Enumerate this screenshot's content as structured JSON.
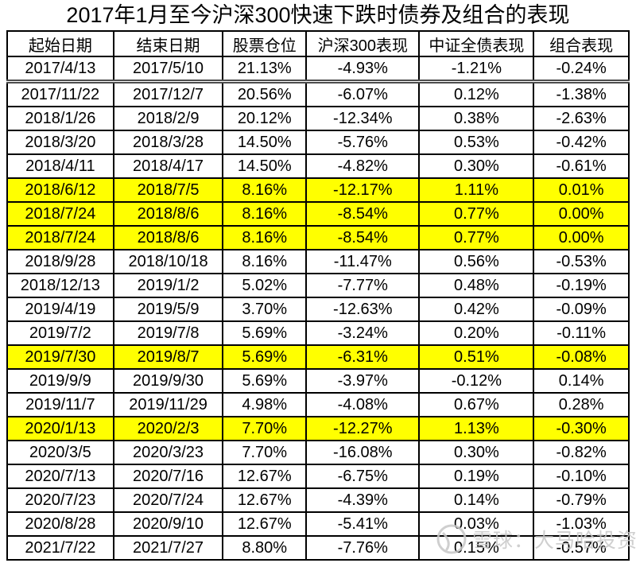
{
  "title": "2017年1月至今沪深300快速下跌时债券及组合的表现",
  "chart_data": {
    "type": "table",
    "title": "2017年1月至今沪深300快速下跌时债券及组合的表现",
    "columns": [
      "起始日期",
      "结束日期",
      "股票仓位",
      "沪深300表现",
      "中证全债表现",
      "组合表现"
    ],
    "rows": [
      [
        "2017/4/13",
        "2017/5/10",
        "21.13%",
        "-4.93%",
        "-1.21%",
        "-0.24%"
      ],
      [
        "2017/11/22",
        "2017/12/7",
        "20.56%",
        "-6.07%",
        "0.12%",
        "-1.38%"
      ],
      [
        "2018/1/26",
        "2018/2/9",
        "20.12%",
        "-12.34%",
        "0.38%",
        "-2.63%"
      ],
      [
        "2018/3/20",
        "2018/3/28",
        "14.50%",
        "-5.76%",
        "0.53%",
        "-0.42%"
      ],
      [
        "2018/4/11",
        "2018/4/17",
        "14.50%",
        "-4.82%",
        "0.30%",
        "-0.61%"
      ],
      [
        "2018/6/12",
        "2018/7/5",
        "8.16%",
        "-12.17%",
        "1.11%",
        "0.01%"
      ],
      [
        "2018/7/24",
        "2018/8/6",
        "8.16%",
        "-8.54%",
        "0.77%",
        "0.00%"
      ],
      [
        "2018/7/24",
        "2018/8/6",
        "8.16%",
        "-8.54%",
        "0.77%",
        "0.00%"
      ],
      [
        "2018/9/28",
        "2018/10/18",
        "8.16%",
        "-11.47%",
        "0.56%",
        "-0.53%"
      ],
      [
        "2018/12/13",
        "2019/1/2",
        "5.02%",
        "-7.77%",
        "0.48%",
        "-0.19%"
      ],
      [
        "2019/4/19",
        "2019/5/9",
        "3.70%",
        "-12.63%",
        "0.42%",
        "-0.09%"
      ],
      [
        "2019/7/2",
        "2019/7/8",
        "5.69%",
        "-3.24%",
        "0.20%",
        "-0.11%"
      ],
      [
        "2019/7/30",
        "2019/8/7",
        "5.69%",
        "-6.31%",
        "0.51%",
        "-0.08%"
      ],
      [
        "2019/9/9",
        "2019/9/30",
        "5.69%",
        "-3.97%",
        "-0.12%",
        "0.14%"
      ],
      [
        "2019/11/7",
        "2019/11/29",
        "4.98%",
        "-4.08%",
        "0.67%",
        "0.28%"
      ],
      [
        "2020/1/13",
        "2020/2/3",
        "7.70%",
        "-12.27%",
        "1.13%",
        "-0.30%"
      ],
      [
        "2020/3/5",
        "2020/3/23",
        "7.70%",
        "-16.08%",
        "0.30%",
        "-0.82%"
      ],
      [
        "2020/7/13",
        "2020/7/16",
        "12.67%",
        "-6.75%",
        "0.19%",
        "-0.10%"
      ],
      [
        "2020/7/23",
        "2020/7/24",
        "12.67%",
        "-4.39%",
        "0.14%",
        "-0.79%"
      ],
      [
        "2020/8/28",
        "2020/9/10",
        "12.67%",
        "-5.41%",
        "0.03%",
        "-1.03%"
      ],
      [
        "2021/7/22",
        "2021/7/27",
        "8.80%",
        "-7.76%",
        "0.15%",
        "-0.57%"
      ]
    ],
    "highlighted_row_indices": [
      5,
      6,
      7,
      12,
      15
    ],
    "highlight_color": "#ffff00",
    "layout": "grid-on"
  },
  "watermark": {
    "text": "雪球：大马哈投资",
    "icon": "snowball-logo-icon",
    "color": "#c7c7c7"
  }
}
